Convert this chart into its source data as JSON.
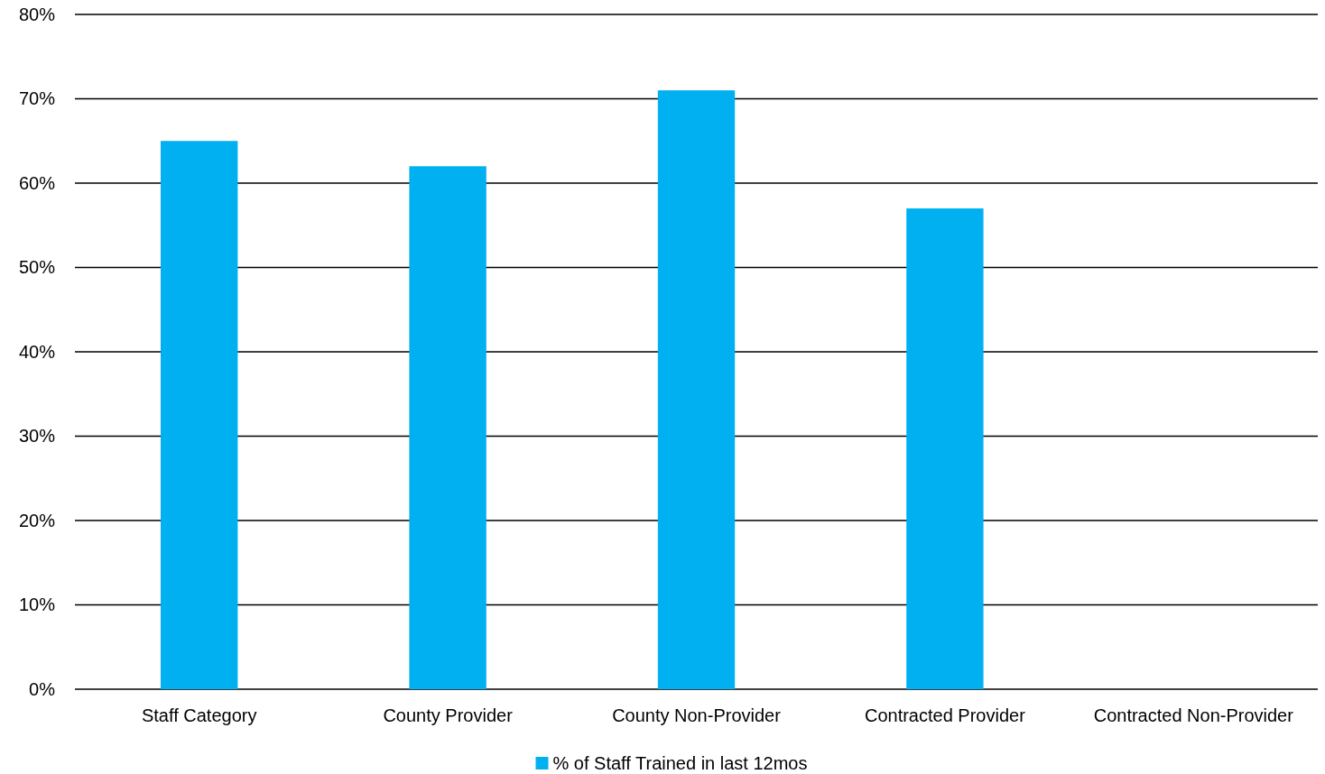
{
  "chart_data": {
    "type": "bar",
    "categories": [
      "Staff Category",
      "County Provider",
      "County Non-Provider",
      "Contracted Provider",
      "Contracted Non-Provider"
    ],
    "series": [
      {
        "name": "% of Staff Trained in last 12mos",
        "color": "#00b0f0",
        "values": [
          65,
          62,
          71,
          57,
          null
        ]
      }
    ],
    "ylim": [
      0,
      80
    ],
    "yticks": [
      {
        "value": 0,
        "label": "0%"
      },
      {
        "value": 10,
        "label": "10%"
      },
      {
        "value": 20,
        "label": "20%"
      },
      {
        "value": 30,
        "label": "30%"
      },
      {
        "value": 40,
        "label": "40%"
      },
      {
        "value": 50,
        "label": "50%"
      },
      {
        "value": 60,
        "label": "60%"
      },
      {
        "value": 70,
        "label": "70%"
      },
      {
        "value": 80,
        "label": "80%"
      }
    ],
    "grid": "y",
    "legend": "bottom"
  }
}
